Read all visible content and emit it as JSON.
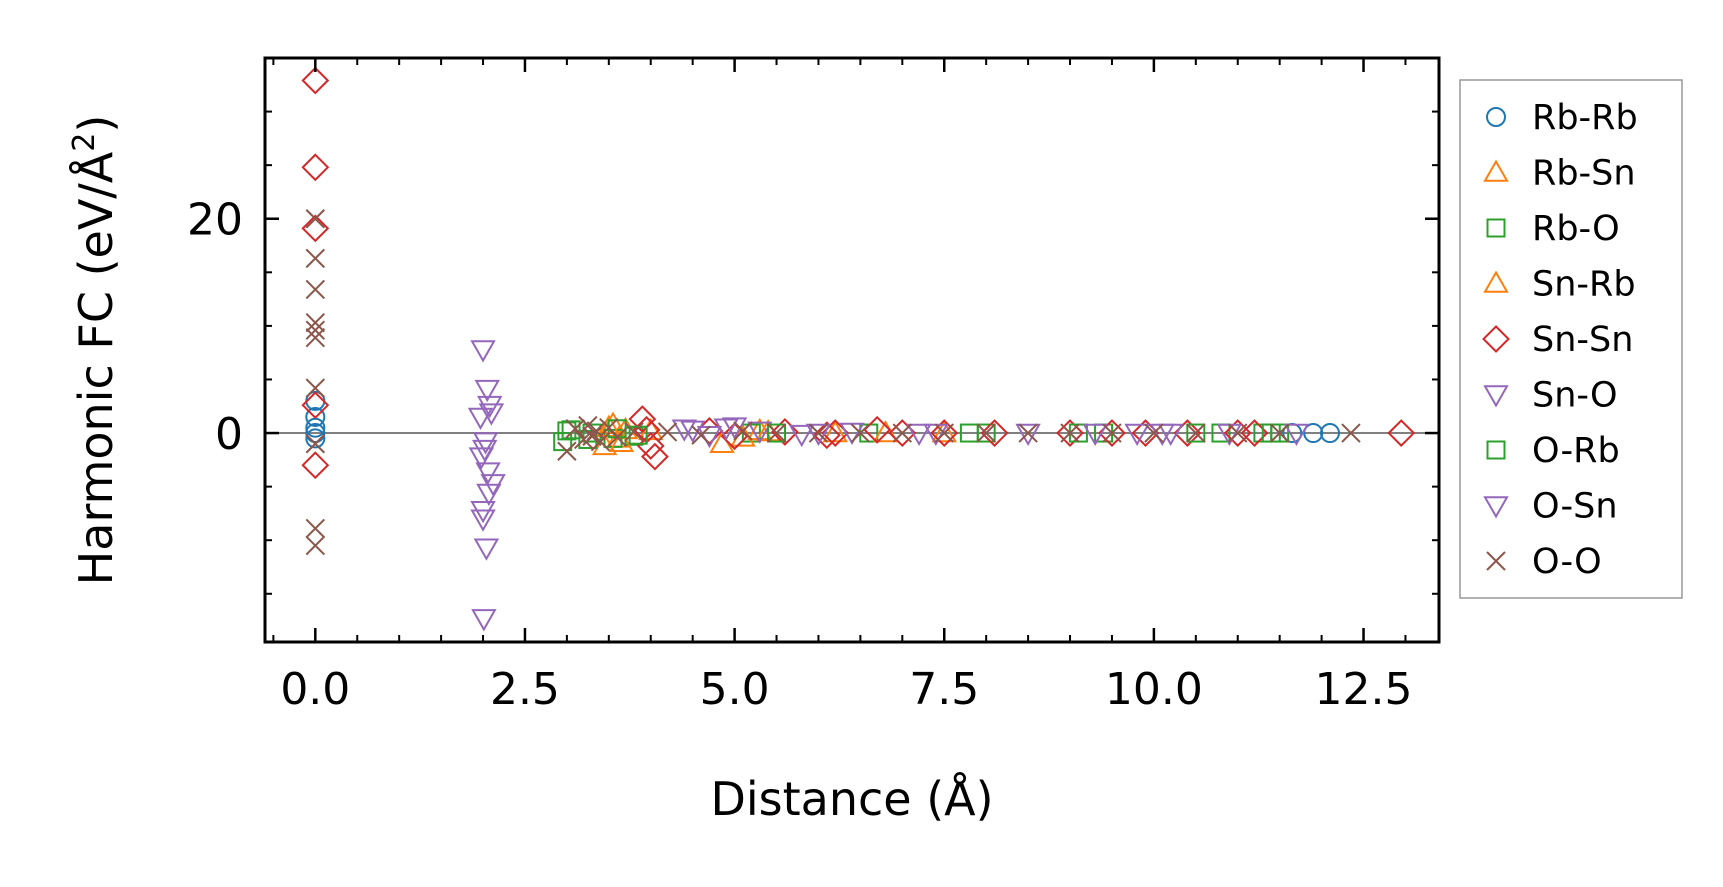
{
  "chart_data": {
    "type": "scatter",
    "title": "",
    "xlabel": "Distance (Å)",
    "ylabel_main": "Harmonic FC (eV/Å",
    "ylabel_sup": "2",
    "ylabel_close": ")",
    "xlim": [
      -0.6,
      13.4
    ],
    "ylim": [
      -19.5,
      35
    ],
    "xticks": [
      0.0,
      2.5,
      5.0,
      7.5,
      10.0,
      12.5
    ],
    "xtick_labels": [
      "0.0",
      "2.5",
      "5.0",
      "7.5",
      "10.0",
      "12.5"
    ],
    "yticks": [
      0,
      20
    ],
    "ytick_labels": [
      "0",
      "20"
    ],
    "x_minor_step": 0.5,
    "y_minor_step": 5,
    "zero_line": true,
    "grid": false,
    "legend_position": "outside-right",
    "colors": {
      "blue": "#1f77b4",
      "orange": "#ff7f0e",
      "green": "#2ca02c",
      "red": "#d62728",
      "purple": "#9467bd",
      "brown": "#8c564b",
      "zero_line": "#808080",
      "legend_border": "#999999"
    },
    "series": [
      {
        "name": "Rb-Rb",
        "marker": "circle",
        "color": "#1f77b4",
        "x": [
          0,
          0,
          0,
          0,
          0,
          11.65,
          11.9,
          12.1
        ],
        "y": [
          3.0,
          1.5,
          0.5,
          0,
          -0.5,
          0,
          0,
          0
        ]
      },
      {
        "name": "Rb-Sn",
        "marker": "triangle-up",
        "color": "#ff7f0e",
        "x": [
          3.45,
          3.55,
          3.62,
          3.7,
          4.85,
          5.3,
          6.2,
          7.5
        ],
        "y": [
          -1.2,
          0.8,
          -0.5,
          0.3,
          -1.0,
          0.2,
          0,
          0
        ]
      },
      {
        "name": "Rb-O",
        "marker": "square",
        "color": "#2ca02c",
        "x": [
          2.95,
          3.05,
          3.3,
          3.55,
          3.8,
          5.2,
          6.6,
          8.0,
          9.4,
          10.8,
          11.3,
          11.5
        ],
        "y": [
          -0.8,
          0.3,
          0.0,
          -0.5,
          -0.3,
          0,
          0,
          0,
          0,
          0,
          0,
          0
        ]
      },
      {
        "name": "Sn-Rb",
        "marker": "triangle-up",
        "color": "#ff7f0e",
        "x": [
          3.5,
          3.65,
          4.0,
          5.1,
          5.4,
          6.8
        ],
        "y": [
          0.5,
          -0.9,
          0.2,
          -0.4,
          0.1,
          0
        ]
      },
      {
        "name": "Sn-Sn",
        "marker": "diamond",
        "color": "#d62728",
        "x": [
          0,
          0,
          0,
          0,
          0,
          3.9,
          3.95,
          4.0,
          4.05,
          4.7,
          5.0,
          5.6,
          6.1,
          6.2,
          6.7,
          7.0,
          7.5,
          8.1,
          9.0,
          9.5,
          9.9,
          10.4,
          11.0,
          11.2,
          12.95
        ],
        "y": [
          32.9,
          24.8,
          19.1,
          2.6,
          -3.0,
          1.3,
          0.3,
          -1.2,
          -2.2,
          0.2,
          -0.3,
          0.1,
          -0.2,
          0,
          0.3,
          0,
          0,
          0,
          0,
          0,
          0,
          0,
          0,
          0,
          0
        ]
      },
      {
        "name": "Sn-O",
        "marker": "triangle-down",
        "color": "#9467bd",
        "x": [
          2.0,
          2.05,
          2.08,
          2.1,
          2.02,
          1.98,
          2.06,
          2.12,
          2.0,
          4.4,
          4.7,
          5.0,
          5.3,
          5.8,
          6.4,
          7.2,
          8.5,
          9.8,
          10.2,
          10.9,
          11.7
        ],
        "y": [
          7.8,
          4.1,
          2.6,
          1.9,
          -1.5,
          -2.2,
          -3.6,
          -4.7,
          -7.2,
          0.4,
          -0.2,
          0.6,
          0.2,
          -0.1,
          0.1,
          0,
          0,
          0,
          0,
          0,
          0
        ]
      },
      {
        "name": "O-Rb",
        "marker": "square",
        "color": "#2ca02c",
        "x": [
          3.0,
          3.25,
          3.6,
          3.85,
          5.5,
          7.8,
          9.1,
          10.5,
          11.4
        ],
        "y": [
          0.2,
          -0.6,
          0.4,
          -0.2,
          0,
          0,
          0,
          0,
          0
        ]
      },
      {
        "name": "O-Sn",
        "marker": "triangle-down",
        "color": "#9467bd",
        "x": [
          1.97,
          2.03,
          2.07,
          2.0,
          2.04,
          2.01,
          4.5,
          4.9,
          6.0,
          7.4,
          9.3,
          10.1
        ],
        "y": [
          1.5,
          -0.8,
          -5.6,
          -8.0,
          -10.7,
          -17.3,
          0.3,
          0.5,
          0,
          0,
          0,
          0
        ]
      },
      {
        "name": "O-O",
        "marker": "x",
        "color": "#8c564b",
        "x": [
          0,
          0,
          0,
          0,
          0,
          0,
          0,
          0,
          0,
          0,
          3.0,
          3.1,
          3.2,
          3.25,
          3.3,
          3.35,
          3.4,
          3.5,
          3.6,
          3.8,
          4.2,
          4.6,
          5.1,
          5.5,
          6.0,
          6.5,
          7.0,
          7.5,
          8.0,
          8.5,
          9.0,
          9.5,
          10.0,
          10.5,
          11.0,
          11.5,
          12.35
        ],
        "y": [
          20.0,
          16.3,
          13.4,
          10.3,
          9.6,
          8.9,
          4.2,
          -1.0,
          -8.9,
          -10.5,
          -1.7,
          0.4,
          -0.6,
          0.7,
          -0.3,
          0.2,
          -0.8,
          0.5,
          -0.4,
          0.1,
          0.1,
          -0.2,
          0.2,
          0,
          0,
          0,
          0,
          0,
          0,
          0,
          0,
          0,
          0,
          0,
          0,
          0,
          0
        ]
      }
    ]
  }
}
